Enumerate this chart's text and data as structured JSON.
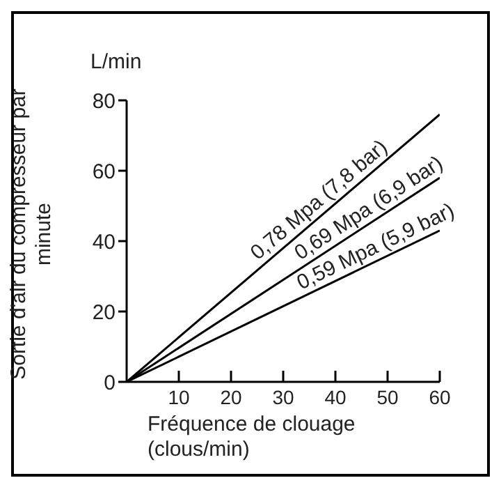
{
  "chart_data": {
    "type": "line",
    "ylabel": "Sortie d'air du compresseur par minute",
    "xlabel": "Fréquence de clouage (clous/min)",
    "annotations": [
      "L/min"
    ],
    "x": [
      0,
      60
    ],
    "series": [
      {
        "name": "0,78 Mpa (7,8 bar)",
        "color": "#000000",
        "values": [
          0,
          76
        ]
      },
      {
        "name": "0,69 Mpa (6,9 bar)",
        "color": "#000000",
        "values": [
          0,
          58
        ]
      },
      {
        "name": "0,59 Mpa (5,9 bar)",
        "color": "#000000",
        "values": [
          0,
          43
        ]
      }
    ],
    "xlim": [
      0,
      60
    ],
    "xticks": [
      10,
      20,
      30,
      40,
      50,
      60
    ],
    "ylim": [
      0,
      80
    ],
    "yticks": [
      0,
      20,
      40,
      60,
      80
    ],
    "grid": false,
    "line_style": "solid"
  }
}
